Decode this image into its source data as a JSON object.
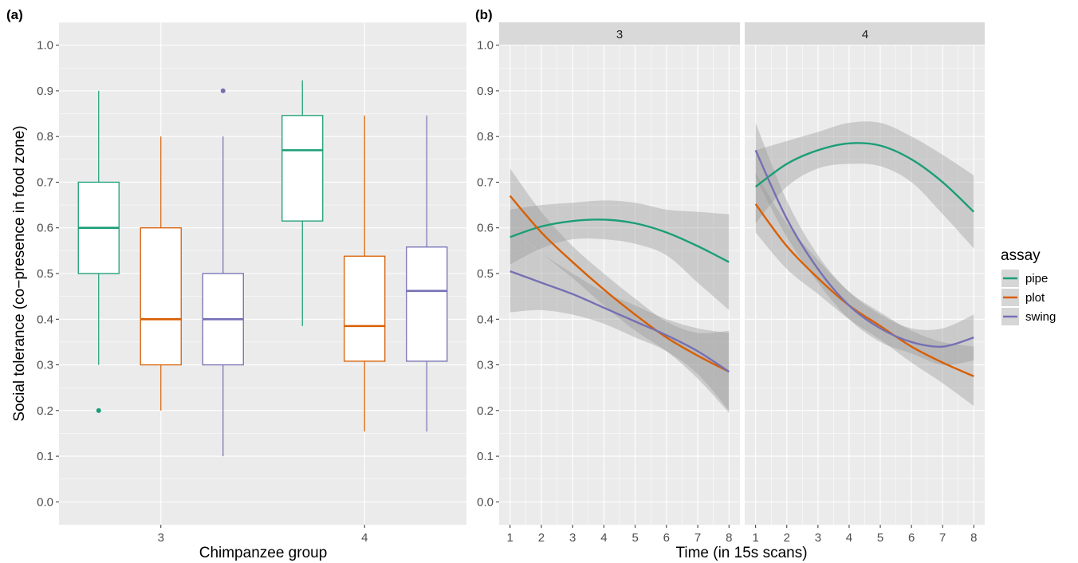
{
  "colors": {
    "pipe": "#1b9e77",
    "plot": "#d95f02",
    "swing": "#7570b3",
    "panel_bg": "#ebebeb",
    "grid": "#ffffff",
    "ribbon": "#999999"
  },
  "chart_data": [
    {
      "tag": "(a)",
      "type": "box",
      "xlabel": "Chimpanzee group",
      "ylabel": "Social tolerance (co−presence in food zone)",
      "categories": [
        "3",
        "4"
      ],
      "ylim": [
        -0.05,
        1.05
      ],
      "yticks": [
        "0.0",
        "0.1",
        "0.2",
        "0.3",
        "0.4",
        "0.5",
        "0.6",
        "0.7",
        "0.8",
        "0.9",
        "1.0"
      ],
      "series": [
        {
          "name": "pipe",
          "boxes": [
            {
              "group": "3",
              "min": 0.3,
              "q1": 0.5,
              "median": 0.6,
              "q3": 0.7,
              "max": 0.9,
              "outliers": [
                0.2
              ]
            },
            {
              "group": "4",
              "min": 0.385,
              "q1": 0.615,
              "median": 0.77,
              "q3": 0.846,
              "max": 0.923,
              "outliers": []
            }
          ]
        },
        {
          "name": "plot",
          "boxes": [
            {
              "group": "3",
              "min": 0.2,
              "q1": 0.3,
              "median": 0.4,
              "q3": 0.6,
              "max": 0.8,
              "outliers": []
            },
            {
              "group": "4",
              "min": 0.154,
              "q1": 0.308,
              "median": 0.385,
              "q3": 0.538,
              "max": 0.846,
              "outliers": []
            }
          ]
        },
        {
          "name": "swing",
          "boxes": [
            {
              "group": "3",
              "min": 0.1,
              "q1": 0.3,
              "median": 0.4,
              "q3": 0.5,
              "max": 0.8,
              "outliers": [
                0.9
              ]
            },
            {
              "group": "4",
              "min": 0.154,
              "q1": 0.308,
              "median": 0.462,
              "q3": 0.558,
              "max": 0.846,
              "outliers": []
            }
          ]
        }
      ]
    },
    {
      "tag": "(b)",
      "type": "line",
      "xlabel": "Time (in 15s scans)",
      "facets": [
        "3",
        "4"
      ],
      "x": [
        1,
        2,
        3,
        4,
        5,
        6,
        7,
        8
      ],
      "ylim": [
        -0.05,
        1.05
      ],
      "yticks": [
        "0.0",
        "0.1",
        "0.2",
        "0.3",
        "0.4",
        "0.5",
        "0.6",
        "0.7",
        "0.8",
        "0.9",
        "1.0"
      ],
      "xticks": [
        "1",
        "2",
        "3",
        "4",
        "5",
        "6",
        "7",
        "8"
      ],
      "panels": [
        {
          "facet": "3",
          "series": [
            {
              "name": "pipe",
              "y": [
                0.58,
                0.603,
                0.615,
                0.618,
                0.61,
                0.59,
                0.56,
                0.525
              ],
              "lower": [
                0.52,
                0.555,
                0.575,
                0.575,
                0.565,
                0.54,
                0.48,
                0.42
              ],
              "upper": [
                0.64,
                0.65,
                0.655,
                0.66,
                0.655,
                0.64,
                0.635,
                0.63
              ]
            },
            {
              "name": "plot",
              "y": [
                0.67,
                0.59,
                0.525,
                0.465,
                0.41,
                0.36,
                0.32,
                0.285
              ],
              "lower": [
                0.6,
                0.545,
                0.49,
                0.43,
                0.375,
                0.33,
                0.27,
                0.195
              ],
              "upper": [
                0.73,
                0.635,
                0.56,
                0.5,
                0.445,
                0.395,
                0.37,
                0.375
              ]
            },
            {
              "name": "swing",
              "y": [
                0.505,
                0.48,
                0.455,
                0.425,
                0.395,
                0.365,
                0.33,
                0.285
              ],
              "lower": [
                0.415,
                0.42,
                0.41,
                0.39,
                0.36,
                0.33,
                0.28,
                0.2
              ],
              "upper": [
                0.6,
                0.545,
                0.5,
                0.46,
                0.43,
                0.4,
                0.38,
                0.37
              ]
            }
          ]
        },
        {
          "facet": "4",
          "series": [
            {
              "name": "pipe",
              "y": [
                0.69,
                0.74,
                0.77,
                0.785,
                0.78,
                0.75,
                0.7,
                0.635
              ],
              "lower": [
                0.61,
                0.69,
                0.73,
                0.74,
                0.735,
                0.7,
                0.63,
                0.555
              ],
              "upper": [
                0.77,
                0.79,
                0.81,
                0.83,
                0.83,
                0.8,
                0.76,
                0.715
              ]
            },
            {
              "name": "plot",
              "y": [
                0.652,
                0.56,
                0.49,
                0.43,
                0.385,
                0.34,
                0.305,
                0.275
              ],
              "lower": [
                0.59,
                0.51,
                0.455,
                0.4,
                0.355,
                0.305,
                0.26,
                0.21
              ],
              "upper": [
                0.72,
                0.61,
                0.53,
                0.46,
                0.415,
                0.375,
                0.35,
                0.34
              ]
            },
            {
              "name": "swing",
              "y": [
                0.77,
                0.62,
                0.51,
                0.43,
                0.38,
                0.35,
                0.34,
                0.36
              ],
              "lower": [
                0.71,
                0.58,
                0.48,
                0.4,
                0.35,
                0.325,
                0.3,
                0.31
              ],
              "upper": [
                0.83,
                0.66,
                0.54,
                0.46,
                0.41,
                0.38,
                0.38,
                0.41
              ]
            }
          ]
        }
      ],
      "legend": {
        "title": "assay",
        "position": "right",
        "entries": [
          "pipe",
          "plot",
          "swing"
        ]
      }
    }
  ]
}
